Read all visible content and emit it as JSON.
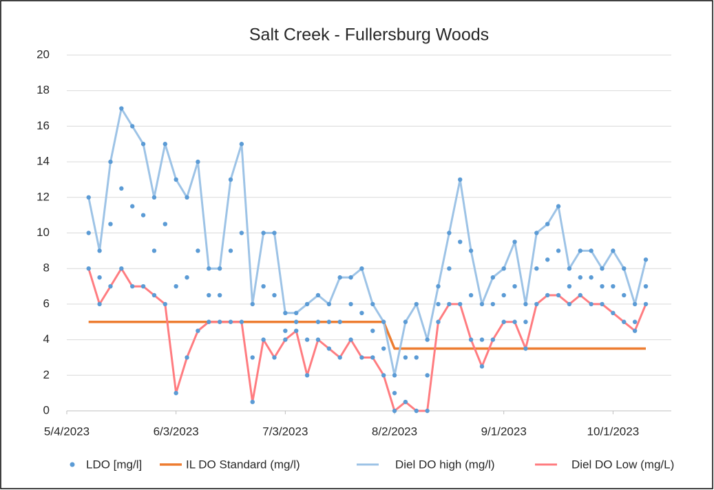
{
  "chart_data": {
    "type": "line",
    "title": "Salt Creek - Fullersburg Woods",
    "x": [
      "5/10/2023",
      "5/13/2023",
      "5/16/2023",
      "5/19/2023",
      "5/22/2023",
      "5/25/2023",
      "5/28/2023",
      "5/31/2023",
      "6/3/2023",
      "6/6/2023",
      "6/9/2023",
      "6/12/2023",
      "6/15/2023",
      "6/18/2023",
      "6/21/2023",
      "6/24/2023",
      "6/27/2023",
      "6/30/2023",
      "7/3/2023",
      "7/6/2023",
      "7/9/2023",
      "7/12/2023",
      "7/15/2023",
      "7/18/2023",
      "7/21/2023",
      "7/24/2023",
      "7/27/2023",
      "7/30/2023",
      "8/2/2023",
      "8/5/2023",
      "8/8/2023",
      "8/11/2023",
      "8/14/2023",
      "8/17/2023",
      "8/20/2023",
      "8/23/2023",
      "8/26/2023",
      "8/29/2023",
      "9/1/2023",
      "9/4/2023",
      "9/7/2023",
      "9/10/2023",
      "9/13/2023",
      "9/16/2023",
      "9/19/2023",
      "9/22/2023",
      "9/25/2023",
      "9/28/2023",
      "10/1/2023",
      "10/4/2023",
      "10/7/2023",
      "10/10/2023"
    ],
    "series": [
      {
        "name": "LDO [mg/l]",
        "color": "#5b9bd5",
        "kind": "scatter",
        "values": [
          [
            12,
            10,
            8
          ],
          [
            9,
            7.5,
            6
          ],
          [
            14,
            10.5,
            7
          ],
          [
            17,
            12.5,
            8
          ],
          [
            16,
            11.5,
            7
          ],
          [
            15,
            11,
            7
          ],
          [
            12,
            9,
            6.5
          ],
          [
            15,
            10.5,
            6
          ],
          [
            13,
            7,
            1
          ],
          [
            12,
            7.5,
            3
          ],
          [
            14,
            9,
            4.5
          ],
          [
            8,
            6.5,
            5
          ],
          [
            8,
            6.5,
            5
          ],
          [
            13,
            9,
            5
          ],
          [
            15,
            10,
            5
          ],
          [
            6,
            3,
            0.5
          ],
          [
            10,
            7,
            4
          ],
          [
            10,
            6.5,
            3
          ],
          [
            5.5,
            4.5,
            4
          ],
          [
            5.5,
            5,
            4.5
          ],
          [
            6,
            4,
            2
          ],
          [
            6.5,
            5,
            4
          ],
          [
            6,
            5,
            3.5
          ],
          [
            7.5,
            5,
            3
          ],
          [
            7.5,
            6,
            4
          ],
          [
            8,
            5.5,
            3
          ],
          [
            6,
            4.5,
            3
          ],
          [
            5,
            3.5,
            2
          ],
          [
            2,
            1,
            0
          ],
          [
            5,
            3,
            0.5
          ],
          [
            6,
            3,
            0
          ],
          [
            4,
            2,
            0
          ],
          [
            7,
            6,
            5
          ],
          [
            10,
            8,
            6
          ],
          [
            13,
            9.5,
            6
          ],
          [
            9,
            6.5,
            4
          ],
          [
            6,
            4,
            2.5
          ],
          [
            7.5,
            6,
            4
          ],
          [
            8,
            6.5,
            5
          ],
          [
            9.5,
            7,
            5
          ],
          [
            6,
            5,
            3.5
          ],
          [
            10,
            8,
            6
          ],
          [
            10.5,
            8.5,
            6.5
          ],
          [
            11.5,
            9,
            6.5
          ],
          [
            8,
            7,
            6
          ],
          [
            9,
            7.5,
            6.5
          ],
          [
            9,
            7.5,
            6
          ],
          [
            8,
            7,
            6
          ],
          [
            9,
            7,
            5.5
          ],
          [
            8,
            6.5,
            5
          ],
          [
            6,
            5,
            4.5
          ],
          [
            8.5,
            7,
            6
          ]
        ]
      },
      {
        "name": "IL DO Standard (mg/l)",
        "color": "#ed7d31",
        "kind": "line",
        "width": 3.5,
        "values": [
          5,
          5,
          5,
          5,
          5,
          5,
          5,
          5,
          5,
          5,
          5,
          5,
          5,
          5,
          5,
          5,
          5,
          5,
          5,
          5,
          5,
          5,
          5,
          5,
          5,
          5,
          5,
          5,
          3.5,
          3.5,
          3.5,
          3.5,
          3.5,
          3.5,
          3.5,
          3.5,
          3.5,
          3.5,
          3.5,
          3.5,
          3.5,
          3.5,
          3.5,
          3.5,
          3.5,
          3.5,
          3.5,
          3.5,
          3.5,
          3.5,
          3.5,
          3.5
        ]
      },
      {
        "name": "Diel DO high (mg/l)",
        "color": "#9dc3e6",
        "kind": "line",
        "width": 3,
        "values": [
          12,
          9,
          14,
          17,
          16,
          15,
          12,
          15,
          13,
          12,
          14,
          8,
          8,
          13,
          15,
          6,
          10,
          10,
          5.5,
          5.5,
          6,
          6.5,
          6,
          7.5,
          7.5,
          8,
          6,
          5,
          2,
          5,
          6,
          4,
          7,
          10,
          13,
          9,
          6,
          7.5,
          8,
          9.5,
          6,
          10,
          10.5,
          11.5,
          8,
          9,
          9,
          8,
          9,
          8,
          6,
          8.5
        ]
      },
      {
        "name": "Diel DO Low (mg/L)",
        "color": "#ff7c80",
        "kind": "line",
        "width": 3,
        "values": [
          8,
          6,
          7,
          8,
          7,
          7,
          6.5,
          6,
          1,
          3,
          4.5,
          5,
          5,
          5,
          5,
          0.5,
          4,
          3,
          4,
          4.5,
          2,
          4,
          3.5,
          3,
          4,
          3,
          3,
          2,
          0,
          0.5,
          0,
          0,
          5,
          6,
          6,
          4,
          2.5,
          4,
          5,
          5,
          3.5,
          6,
          6.5,
          6.5,
          6,
          6.5,
          6,
          6,
          5.5,
          5,
          4.5,
          6
        ]
      }
    ],
    "xlim": [
      "5/4/2023",
      "10/17/2023"
    ],
    "xticks": [
      "5/4/2023",
      "6/3/2023",
      "7/3/2023",
      "8/2/2023",
      "9/1/2023",
      "10/1/2023"
    ],
    "ylim": [
      0,
      20
    ],
    "yticks": [
      0,
      2,
      4,
      6,
      8,
      10,
      12,
      14,
      16,
      18,
      20
    ],
    "grid": true,
    "legend": "bottom"
  }
}
